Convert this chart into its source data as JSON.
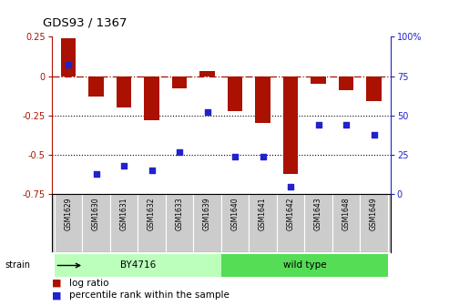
{
  "title": "GDS93 / 1367",
  "samples": [
    "GSM1629",
    "GSM1630",
    "GSM1631",
    "GSM1632",
    "GSM1633",
    "GSM1639",
    "GSM1640",
    "GSM1641",
    "GSM1642",
    "GSM1643",
    "GSM1648",
    "GSM1649"
  ],
  "log_ratio": [
    0.24,
    -0.13,
    -0.2,
    -0.28,
    -0.08,
    0.03,
    -0.22,
    -0.3,
    -0.62,
    -0.05,
    -0.09,
    -0.16
  ],
  "percentile": [
    82,
    13,
    18,
    15,
    27,
    52,
    24,
    24,
    5,
    44,
    44,
    38
  ],
  "bar_color": "#aa1100",
  "dot_color": "#2222cc",
  "strain_groups": [
    {
      "label": "BY4716",
      "start": 0,
      "end": 6,
      "color": "#bbffbb"
    },
    {
      "label": "wild type",
      "start": 6,
      "end": 12,
      "color": "#55dd55"
    }
  ],
  "ylim_left": [
    -0.75,
    0.25
  ],
  "ylim_right": [
    0,
    100
  ],
  "yticks_left": [
    -0.75,
    -0.5,
    -0.25,
    0,
    0.25
  ],
  "yticks_right": [
    0,
    25,
    50,
    75,
    100
  ],
  "dotted_lines": [
    -0.25,
    -0.5
  ],
  "legend_log_ratio": "log ratio",
  "legend_percentile": "percentile rank within the sample",
  "strain_label": "strain",
  "label_bg_color": "#cccccc",
  "label_border_color": "#999999"
}
